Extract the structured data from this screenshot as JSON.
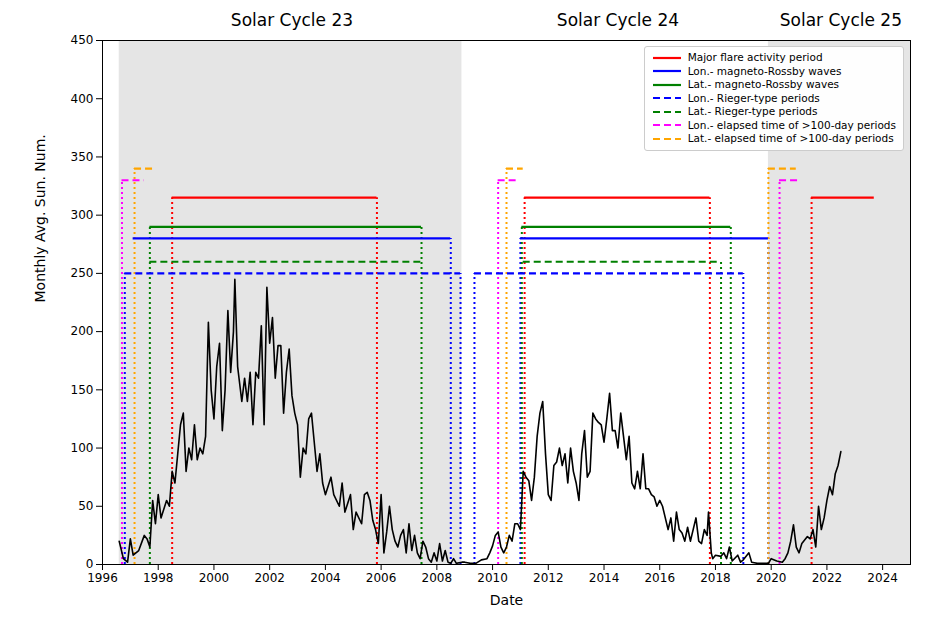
{
  "chart_data": {
    "type": "line",
    "x_label": "Date",
    "y_label": "Monthly Avg. Sun. Num.",
    "xlim": [
      1996,
      2025
    ],
    "xticks": [
      1996,
      1998,
      2000,
      2002,
      2004,
      2006,
      2008,
      2010,
      2012,
      2014,
      2016,
      2018,
      2020,
      2022,
      2024
    ],
    "ylim": [
      0,
      450
    ],
    "yticks": [
      0,
      50,
      100,
      150,
      200,
      250,
      300,
      350,
      400,
      450
    ],
    "grid": false,
    "legend": "upper right",
    "color": "#000000",
    "annotations": [
      {
        "text": "Solar Cycle 23",
        "x": 2002.8
      },
      {
        "text": "Solar Cycle 24",
        "x": 2014.5
      },
      {
        "text": "Solar Cycle 25",
        "x": 2022.5
      }
    ],
    "shaded_regions": {
      "color": "#e5e5e5",
      "ranges": [
        [
          1996.6,
          2008.9
        ],
        [
          2019.9,
          2025
        ]
      ]
    },
    "x": [
      1996.6,
      1996.75,
      1996.9,
      1997.0,
      1997.1,
      1997.3,
      1997.5,
      1997.6,
      1997.7,
      1997.8,
      1997.9,
      1998.0,
      1998.1,
      1998.3,
      1998.4,
      1998.5,
      1998.6,
      1998.7,
      1998.8,
      1998.9,
      1999.0,
      1999.1,
      1999.2,
      1999.3,
      1999.4,
      1999.5,
      1999.6,
      1999.7,
      1999.8,
      1999.9,
      2000.0,
      2000.1,
      2000.2,
      2000.3,
      2000.4,
      2000.5,
      2000.6,
      2000.7,
      2000.75,
      2000.85,
      2001.0,
      2001.1,
      2001.2,
      2001.3,
      2001.4,
      2001.5,
      2001.6,
      2001.7,
      2001.8,
      2001.9,
      2002.0,
      2002.1,
      2002.2,
      2002.3,
      2002.4,
      2002.5,
      2002.6,
      2002.7,
      2002.8,
      2002.9,
      2003.0,
      2003.1,
      2003.2,
      2003.3,
      2003.4,
      2003.5,
      2003.6,
      2003.7,
      2003.8,
      2003.9,
      2004.0,
      2004.2,
      2004.3,
      2004.5,
      2004.6,
      2004.7,
      2004.9,
      2005.0,
      2005.1,
      2005.3,
      2005.4,
      2005.5,
      2005.6,
      2005.7,
      2005.8,
      2005.9,
      2006.0,
      2006.1,
      2006.2,
      2006.3,
      2006.4,
      2006.5,
      2006.6,
      2006.7,
      2006.8,
      2006.9,
      2007.0,
      2007.1,
      2007.2,
      2007.3,
      2007.4,
      2007.5,
      2007.6,
      2007.7,
      2007.8,
      2007.9,
      2008.0,
      2008.1,
      2008.2,
      2008.3,
      2008.4,
      2008.5,
      2008.6,
      2008.7,
      2008.9,
      2009.0,
      2009.2,
      2009.4,
      2009.6,
      2009.8,
      2009.9,
      2010.0,
      2010.1,
      2010.2,
      2010.3,
      2010.4,
      2010.5,
      2010.6,
      2010.7,
      2010.8,
      2010.9,
      2011.0,
      2011.1,
      2011.2,
      2011.3,
      2011.4,
      2011.5,
      2011.6,
      2011.7,
      2011.8,
      2011.9,
      2012.0,
      2012.1,
      2012.2,
      2012.3,
      2012.4,
      2012.5,
      2012.6,
      2012.7,
      2012.8,
      2012.9,
      2013.0,
      2013.1,
      2013.2,
      2013.3,
      2013.4,
      2013.5,
      2013.6,
      2013.7,
      2013.8,
      2013.9,
      2014.0,
      2014.1,
      2014.2,
      2014.3,
      2014.4,
      2014.5,
      2014.6,
      2014.7,
      2014.8,
      2014.9,
      2015.0,
      2015.1,
      2015.2,
      2015.3,
      2015.4,
      2015.5,
      2015.6,
      2015.7,
      2015.8,
      2015.9,
      2016.0,
      2016.1,
      2016.3,
      2016.4,
      2016.5,
      2016.6,
      2016.7,
      2016.8,
      2016.9,
      2017.0,
      2017.1,
      2017.3,
      2017.4,
      2017.5,
      2017.6,
      2017.7,
      2017.75,
      2017.85,
      2017.9,
      2018.0,
      2018.2,
      2018.3,
      2018.4,
      2018.5,
      2018.6,
      2018.8,
      2018.9,
      2019.0,
      2019.2,
      2019.3,
      2019.5,
      2019.7,
      2019.9,
      2020.0,
      2020.2,
      2020.4,
      2020.5,
      2020.6,
      2020.7,
      2020.8,
      2020.9,
      2021.0,
      2021.1,
      2021.3,
      2021.4,
      2021.5,
      2021.6,
      2021.7,
      2021.8,
      2021.9,
      2022.0,
      2022.1,
      2022.2,
      2022.3,
      2022.4,
      2022.5
    ],
    "values": [
      20,
      5,
      2,
      22,
      8,
      12,
      25,
      22,
      15,
      55,
      35,
      60,
      40,
      55,
      50,
      80,
      70,
      95,
      120,
      130,
      80,
      100,
      90,
      120,
      90,
      100,
      95,
      110,
      208,
      150,
      125,
      170,
      190,
      115,
      150,
      218,
      165,
      200,
      245,
      170,
      140,
      160,
      140,
      165,
      120,
      165,
      160,
      205,
      120,
      238,
      190,
      212,
      160,
      188,
      188,
      130,
      165,
      185,
      145,
      130,
      120,
      75,
      100,
      95,
      125,
      130,
      105,
      80,
      95,
      70,
      60,
      75,
      60,
      50,
      70,
      45,
      60,
      30,
      45,
      35,
      60,
      62,
      55,
      38,
      30,
      18,
      60,
      10,
      28,
      50,
      30,
      20,
      15,
      25,
      30,
      10,
      35,
      12,
      25,
      10,
      5,
      20,
      15,
      5,
      2,
      10,
      3,
      18,
      3,
      12,
      2,
      1,
      5,
      1,
      2,
      2,
      1,
      1,
      4,
      5,
      10,
      16,
      25,
      28,
      15,
      10,
      15,
      25,
      20,
      35,
      35,
      30,
      80,
      75,
      72,
      55,
      75,
      110,
      130,
      140,
      95,
      60,
      55,
      85,
      88,
      100,
      85,
      95,
      70,
      100,
      80,
      70,
      55,
      95,
      115,
      75,
      80,
      130,
      125,
      122,
      120,
      105,
      125,
      147,
      115,
      115,
      100,
      130,
      110,
      90,
      110,
      70,
      65,
      80,
      65,
      95,
      65,
      65,
      60,
      58,
      50,
      55,
      50,
      30,
      40,
      20,
      45,
      30,
      27,
      20,
      32,
      20,
      40,
      20,
      18,
      30,
      25,
      45,
      10,
      5,
      8,
      7,
      10,
      5,
      15,
      3,
      8,
      2,
      4,
      10,
      2,
      1,
      1,
      1,
      5,
      3,
      2,
      5,
      10,
      20,
      34,
      15,
      10,
      18,
      24,
      22,
      30,
      15,
      50,
      30,
      40,
      55,
      67,
      60,
      78,
      85,
      97
    ],
    "series": [
      {
        "name": "Major flare activity period",
        "color": "#ff0000",
        "line_style": "solid",
        "level": 315,
        "segments": [
          [
            1998.5,
            2005.85
          ],
          [
            2011.15,
            2017.8
          ],
          [
            2021.45,
            2023.7
          ]
        ],
        "boundaries": [
          1998.5,
          2005.85,
          2011.15,
          2017.8,
          2021.45
        ]
      },
      {
        "name": "Lon.- magneto-Rossby waves",
        "color": "#0000ff",
        "line_style": "solid",
        "level": 280,
        "segments": [
          [
            1997.1,
            2008.5
          ],
          [
            2011.0,
            2019.9
          ]
        ],
        "boundaries": [
          2008.5,
          2011.0,
          2019.9
        ]
      },
      {
        "name": "Lat.- magneto-Rossby waves",
        "color": "#008000",
        "line_style": "solid",
        "level": 290,
        "segments": [
          [
            1997.7,
            2007.45
          ],
          [
            2011.05,
            2018.55
          ]
        ],
        "boundaries": [
          1997.7,
          2007.45,
          2011.05,
          2018.55
        ]
      },
      {
        "name": "Lon.- Rieger-type periods",
        "color": "#0000ff",
        "line_style": "dashed",
        "level": 250,
        "segments": [
          [
            1996.8,
            2008.85
          ],
          [
            2009.35,
            2019.0
          ]
        ],
        "boundaries": [
          1996.8,
          2008.85,
          2009.35,
          2019.0
        ]
      },
      {
        "name": "Lat.- Rieger-type periods",
        "color": "#008000",
        "line_style": "dashed",
        "level": 260,
        "segments": [
          [
            1997.7,
            2007.45
          ],
          [
            2011.1,
            2018.2
          ]
        ],
        "boundaries": [
          2018.2
        ]
      },
      {
        "name": "Lon.- elapsed time of >100-day periods",
        "color": "#ff00ff",
        "line_style": "dashed",
        "level": 330,
        "segments": [
          [
            1996.7,
            1997.5
          ],
          [
            2010.2,
            2010.85
          ],
          [
            2020.3,
            2021.0
          ]
        ],
        "boundaries": [
          1996.7,
          2010.2,
          2020.3
        ]
      },
      {
        "name": "Lat.- elapsed time of >100-day periods",
        "color": "#ffa500",
        "line_style": "dashed",
        "level": 340,
        "segments": [
          [
            1997.15,
            1997.8
          ],
          [
            2010.5,
            2011.1
          ],
          [
            2019.9,
            2020.9
          ]
        ],
        "boundaries": [
          1997.15,
          2010.5,
          2019.9
        ]
      }
    ]
  }
}
